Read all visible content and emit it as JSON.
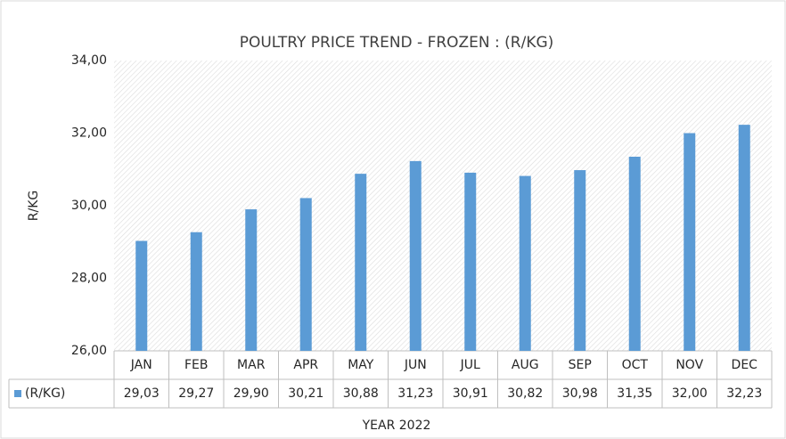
{
  "chart_data": {
    "type": "bar",
    "title": "POULTRY PRICE TREND - FROZEN : (R/KG)",
    "x_label": "YEAR 2022",
    "y_label": "R/KG",
    "categories": [
      "JAN",
      "FEB",
      "MAR",
      "APR",
      "MAY",
      "JUN",
      "JUL",
      "AUG",
      "SEP",
      "OCT",
      "NOV",
      "DEC"
    ],
    "series": [
      {
        "name": "(R/KG)",
        "color": "#5b9bd5",
        "values": [
          29.03,
          29.27,
          29.9,
          30.21,
          30.88,
          31.23,
          30.91,
          30.82,
          30.98,
          31.35,
          32.0,
          32.23
        ],
        "value_labels": [
          "29,03",
          "29,27",
          "29,90",
          "30,21",
          "30,88",
          "31,23",
          "30,91",
          "30,82",
          "30,98",
          "31,35",
          "32,00",
          "32,23"
        ]
      }
    ],
    "ylim": [
      26,
      34
    ],
    "yticks": [
      {
        "value": 26,
        "label": "26,00"
      },
      {
        "value": 28,
        "label": "28,00"
      },
      {
        "value": 30,
        "label": "30,00"
      },
      {
        "value": 32,
        "label": "32,00"
      },
      {
        "value": 34,
        "label": "34,00"
      }
    ],
    "grid": false,
    "data_table": true
  }
}
